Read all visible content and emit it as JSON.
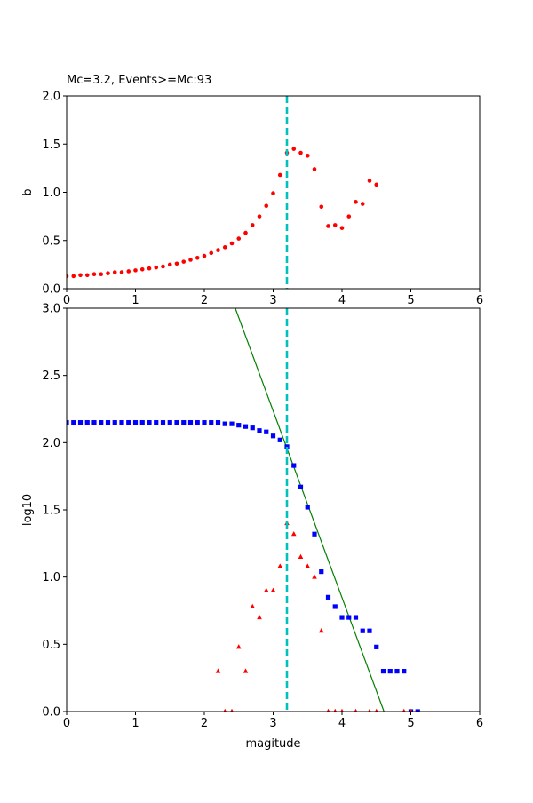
{
  "chart_data": [
    {
      "type": "scatter",
      "title": "Mc=3.2, Events>=Mc:93",
      "xlabel": "",
      "ylabel": "b",
      "xlim": [
        0,
        6
      ],
      "ylim": [
        0,
        2
      ],
      "xticks": [
        "0",
        "1",
        "2",
        "3",
        "4",
        "5",
        "6"
      ],
      "yticks": [
        "0.0",
        "0.5",
        "1.0",
        "1.5",
        "2.0"
      ],
      "grid": false,
      "mc_line": {
        "x": 3.2,
        "color": "#00c0c0",
        "style": "dashed"
      },
      "series": [
        {
          "marker": "circle",
          "color": "#ff0000",
          "x": [
            0.0,
            0.1,
            0.2,
            0.3,
            0.4,
            0.5,
            0.6,
            0.7,
            0.8,
            0.9,
            1.0,
            1.1,
            1.2,
            1.3,
            1.4,
            1.5,
            1.6,
            1.7,
            1.8,
            1.9,
            2.0,
            2.1,
            2.2,
            2.3,
            2.4,
            2.5,
            2.6,
            2.7,
            2.8,
            2.9,
            3.0,
            3.1,
            3.2,
            3.3,
            3.4,
            3.5,
            3.6,
            3.7,
            3.8,
            3.9,
            4.0,
            4.1,
            4.2,
            4.3,
            4.4,
            4.5
          ],
          "y": [
            0.13,
            0.13,
            0.14,
            0.14,
            0.15,
            0.15,
            0.16,
            0.17,
            0.17,
            0.18,
            0.19,
            0.2,
            0.21,
            0.22,
            0.23,
            0.25,
            0.26,
            0.28,
            0.3,
            0.32,
            0.34,
            0.37,
            0.4,
            0.43,
            0.47,
            0.52,
            0.58,
            0.66,
            0.75,
            0.86,
            0.99,
            1.18,
            1.41,
            1.45,
            1.41,
            1.38,
            1.24,
            0.85,
            0.65,
            0.66,
            0.63,
            0.75,
            0.9,
            0.88,
            1.12,
            1.08
          ]
        }
      ]
    },
    {
      "type": "scatter",
      "title": "",
      "xlabel": "magitude",
      "ylabel": "log10",
      "xlim": [
        0,
        6
      ],
      "ylim": [
        0,
        3
      ],
      "xticks": [
        "0",
        "1",
        "2",
        "3",
        "4",
        "5",
        "6"
      ],
      "yticks": [
        "0.0",
        "0.5",
        "1.0",
        "1.5",
        "2.0",
        "2.5",
        "3.0"
      ],
      "grid": false,
      "mc_line": {
        "x": 3.2,
        "color": "#00c0c0",
        "style": "dashed"
      },
      "fit_line": {
        "color": "#008000",
        "x": [
          2.45,
          4.61
        ],
        "y": [
          3.0,
          0.0
        ]
      },
      "series": [
        {
          "marker": "square",
          "color": "#0000ff",
          "x": [
            0.0,
            0.1,
            0.2,
            0.3,
            0.4,
            0.5,
            0.6,
            0.7,
            0.8,
            0.9,
            1.0,
            1.1,
            1.2,
            1.3,
            1.4,
            1.5,
            1.6,
            1.7,
            1.8,
            1.9,
            2.0,
            2.1,
            2.2,
            2.3,
            2.4,
            2.5,
            2.6,
            2.7,
            2.8,
            2.9,
            3.0,
            3.1,
            3.2,
            3.3,
            3.4,
            3.5,
            3.6,
            3.7,
            3.8,
            3.9,
            4.0,
            4.1,
            4.2,
            4.3,
            4.4,
            4.5,
            4.6,
            4.7,
            4.8,
            4.9,
            5.0,
            5.1
          ],
          "y": [
            2.15,
            2.15,
            2.15,
            2.15,
            2.15,
            2.15,
            2.15,
            2.15,
            2.15,
            2.15,
            2.15,
            2.15,
            2.15,
            2.15,
            2.15,
            2.15,
            2.15,
            2.15,
            2.15,
            2.15,
            2.15,
            2.15,
            2.15,
            2.14,
            2.14,
            2.13,
            2.12,
            2.11,
            2.09,
            2.08,
            2.05,
            2.02,
            1.97,
            1.83,
            1.67,
            1.52,
            1.32,
            1.04,
            0.85,
            0.78,
            0.7,
            0.7,
            0.7,
            0.6,
            0.6,
            0.48,
            0.3,
            0.3,
            0.3,
            0.3,
            0.0,
            0.0
          ]
        },
        {
          "marker": "triangle",
          "color": "#ff0000",
          "x": [
            2.2,
            2.3,
            2.4,
            2.5,
            2.6,
            2.7,
            2.8,
            2.9,
            3.0,
            3.1,
            3.2,
            3.3,
            3.4,
            3.5,
            3.6,
            3.7,
            3.8,
            3.9,
            4.0,
            4.2,
            4.4,
            4.5,
            4.9,
            5.0
          ],
          "y": [
            0.3,
            0.0,
            0.0,
            0.48,
            0.3,
            0.78,
            0.7,
            0.9,
            0.9,
            1.08,
            1.4,
            1.32,
            1.15,
            1.08,
            1.0,
            0.6,
            0.0,
            0.0,
            0.0,
            0.0,
            0.0,
            0.0,
            0.0,
            0.0
          ]
        }
      ]
    }
  ]
}
